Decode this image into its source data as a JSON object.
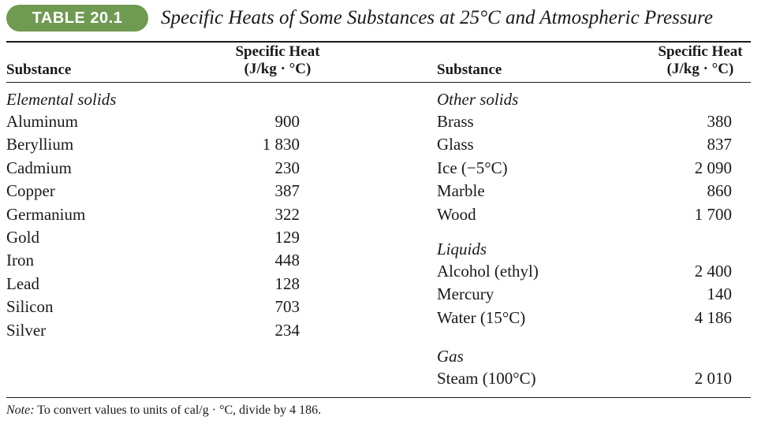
{
  "table_label": "TABLE 20.1",
  "title": "Specific Heats of Some Substances at 25°C and Atmospheric Pressure",
  "headers": {
    "substance": "Substance",
    "specific_heat_line1": "Specific Heat",
    "specific_heat_line2": "(J/kg · °C)"
  },
  "left_groups": [
    {
      "label": "Elemental solids",
      "rows": [
        {
          "name": "Aluminum",
          "value": "900"
        },
        {
          "name": "Beryllium",
          "value": "1 830"
        },
        {
          "name": "Cadmium",
          "value": "230"
        },
        {
          "name": "Copper",
          "value": "387"
        },
        {
          "name": "Germanium",
          "value": "322"
        },
        {
          "name": "Gold",
          "value": "129"
        },
        {
          "name": "Iron",
          "value": "448"
        },
        {
          "name": "Lead",
          "value": "128"
        },
        {
          "name": "Silicon",
          "value": "703"
        },
        {
          "name": "Silver",
          "value": "234"
        }
      ]
    }
  ],
  "right_groups": [
    {
      "label": "Other solids",
      "rows": [
        {
          "name": "Brass",
          "value": "380"
        },
        {
          "name": "Glass",
          "value": "837"
        },
        {
          "name": "Ice (−5°C)",
          "value": "2 090"
        },
        {
          "name": "Marble",
          "value": "860"
        },
        {
          "name": "Wood",
          "value": "1 700"
        }
      ]
    },
    {
      "label": "Liquids",
      "rows": [
        {
          "name": "Alcohol (ethyl)",
          "value": "2 400"
        },
        {
          "name": "Mercury",
          "value": "140"
        },
        {
          "name": "Water (15°C)",
          "value": "4 186"
        }
      ]
    },
    {
      "label": "Gas",
      "rows": [
        {
          "name": "Steam (100°C)",
          "value": "2 010"
        }
      ]
    }
  ],
  "note": {
    "label": "Note:",
    "text": " To convert values to units of cal/g · °C, divide by 4 186."
  },
  "colors": {
    "badge": "#6f9a52"
  }
}
